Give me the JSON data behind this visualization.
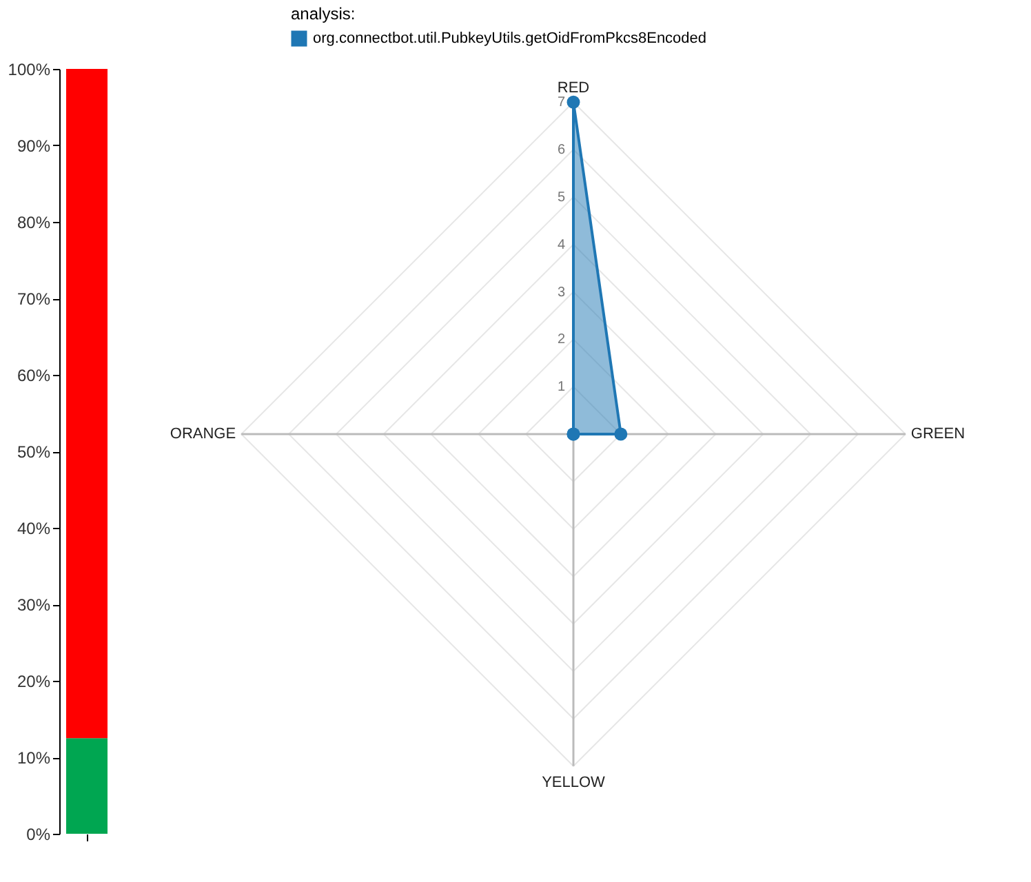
{
  "chart_data": [
    {
      "type": "bar",
      "stacked": true,
      "categories": [
        null
      ],
      "series": [
        {
          "color": "#00a651",
          "values": [
            12.5
          ]
        },
        {
          "color": "#ff0000",
          "values": [
            87.5
          ]
        }
      ],
      "ylim": [
        0,
        100
      ],
      "yticks": [
        {
          "value": 0,
          "label": "0%"
        },
        {
          "value": 10,
          "label": "10%"
        },
        {
          "value": 20,
          "label": "20%"
        },
        {
          "value": 30,
          "label": "30%"
        },
        {
          "value": 40,
          "label": "40%"
        },
        {
          "value": 50,
          "label": "50%"
        },
        {
          "value": 60,
          "label": "60%"
        },
        {
          "value": 70,
          "label": "70%"
        },
        {
          "value": 80,
          "label": "80%"
        },
        {
          "value": 90,
          "label": "90%"
        },
        {
          "value": 100,
          "label": "100%"
        }
      ],
      "grid": false
    },
    {
      "type": "radar",
      "categories": [
        "RED",
        "GREEN",
        "YELLOW",
        "ORANGE"
      ],
      "legend_title": "analysis:",
      "legend": "top",
      "series": [
        {
          "name": "org.connectbot.util.PubkeyUtils.getOidFromPkcs8Encoded",
          "color": "#1f77b4",
          "values": [
            7,
            1,
            0,
            0
          ]
        }
      ],
      "ylim": [
        0,
        7
      ],
      "yticks": [
        1,
        2,
        3,
        4,
        5,
        6,
        7
      ],
      "grid": true,
      "marker": "circle"
    }
  ]
}
